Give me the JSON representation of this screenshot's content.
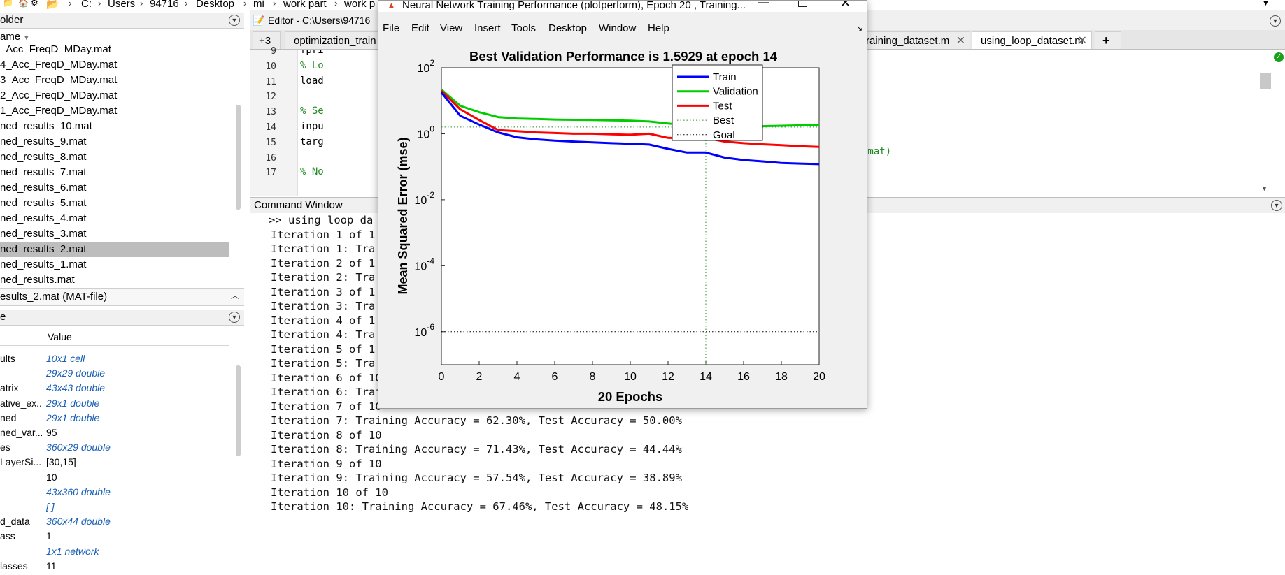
{
  "address_bar": {
    "crumbs": [
      "C:",
      "Users",
      "94716",
      "Desktop",
      "mi",
      "work part",
      "work p"
    ]
  },
  "current_folder": {
    "title": "older",
    "column_header": "ame",
    "files": [
      "_Acc_FreqD_MDay.mat",
      "4_Acc_FreqD_MDay.mat",
      "3_Acc_FreqD_MDay.mat",
      "2_Acc_FreqD_MDay.mat",
      "1_Acc_FreqD_MDay.mat",
      "ned_results_10.mat",
      "ned_results_9.mat",
      "ned_results_8.mat",
      "ned_results_7.mat",
      "ned_results_6.mat",
      "ned_results_5.mat",
      "ned_results_4.mat",
      "ned_results_3.mat",
      "ned_results_2.mat",
      "ned_results_1.mat",
      "ned_results.mat"
    ],
    "selected_index": 13
  },
  "details": {
    "label": "esults_2.mat  (MAT-file)"
  },
  "workspace": {
    "title": "e",
    "col_name": "",
    "col_value": "Value",
    "rows": [
      {
        "name": "ults",
        "value": "10x1 cell",
        "link": true
      },
      {
        "name": "",
        "value": "29x29 double",
        "link": true
      },
      {
        "name": "atrix",
        "value": "43x43 double",
        "link": true
      },
      {
        "name": "ative_ex...",
        "value": "29x1 double",
        "link": true
      },
      {
        "name": "ned",
        "value": "29x1 double",
        "link": true
      },
      {
        "name": "ned_var...",
        "value": "95",
        "link": false
      },
      {
        "name": "es",
        "value": "360x29 double",
        "link": true
      },
      {
        "name": "LayerSi...",
        "value": "[30,15]",
        "link": false
      },
      {
        "name": "",
        "value": "10",
        "link": false
      },
      {
        "name": "",
        "value": "43x360 double",
        "link": true
      },
      {
        "name": "",
        "value": "[ ]",
        "link": true
      },
      {
        "name": "d_data",
        "value": "360x44 double",
        "link": true
      },
      {
        "name": "ass",
        "value": "1",
        "link": false
      },
      {
        "name": "",
        "value": "1x1 network",
        "link": true
      },
      {
        "name": "lasses",
        "value": "11",
        "link": false
      }
    ]
  },
  "editor": {
    "title": "Editor - C:\\Users\\94716",
    "tabs": [
      {
        "label": "+3"
      },
      {
        "label": "optimization_train"
      },
      {
        "label": "raining_dataset.m"
      },
      {
        "label": "using_loop_dataset.m"
      }
    ],
    "add_tab": "+",
    "lines": [
      {
        "n": "9",
        "code": "fpri",
        "comment": false
      },
      {
        "n": "10",
        "code": "% Lo",
        "comment": true
      },
      {
        "n": "11",
        "code": "load",
        "comment": false
      },
      {
        "n": "12",
        "code": "",
        "comment": false
      },
      {
        "n": "13",
        "code": "% Se",
        "comment": true
      },
      {
        "n": "14",
        "code": "inpu",
        "comment": false
      },
      {
        "n": "15",
        "code": "targ",
        "comment": false
      },
      {
        "n": "16",
        "code": "",
        "comment": false
      },
      {
        "n": "17",
        "code": "% No",
        "comment": true
      }
    ],
    "right_fragment": "rmat)"
  },
  "command_window": {
    "title": "Command Window",
    "lines": [
      ">> using_loop_da",
      "Iteration 1 of 1",
      "Iteration 1: Tra",
      "Iteration 2 of 1",
      "Iteration 2: Tra",
      "Iteration 3 of 1",
      "Iteration 3: Tra",
      "Iteration 4 of 1",
      "Iteration 4: Tra",
      "Iteration 5 of 1",
      "Iteration 5: Tra",
      "Iteration 6 of 10",
      "Iteration 6: Training Accuracy = 84.52%, Test Accuracy = 72.22%",
      "Iteration 7 of 10",
      "Iteration 7: Training Accuracy = 62.30%, Test Accuracy = 50.00%",
      "Iteration 8 of 10",
      "Iteration 8: Training Accuracy = 71.43%, Test Accuracy = 44.44%",
      "Iteration 9 of 10",
      "Iteration 9: Training Accuracy = 57.54%, Test Accuracy = 38.89%",
      "Iteration 10 of 10",
      "Iteration 10: Training Accuracy = 67.46%, Test Accuracy = 48.15%"
    ]
  },
  "figure": {
    "title": "Neural Network Training Performance (plotperform), Epoch 20 , Training...",
    "menu": [
      "File",
      "Edit",
      "View",
      "Insert",
      "Tools",
      "Desktop",
      "Window",
      "Help"
    ]
  },
  "colors": {
    "train": "#0000ff",
    "validation": "#00cc00",
    "test": "#ff0000",
    "best_marker": "#008800",
    "link": "#1a5fb4",
    "comment": "#228b22"
  },
  "chart_data": {
    "type": "line",
    "title": "Best Validation Performance is 1.5929 at epoch 14",
    "xlabel": "20 Epochs",
    "ylabel": "Mean Squared Error  (mse)",
    "xlim": [
      0,
      20
    ],
    "ylim": [
      1e-07,
      100
    ],
    "yscale": "log",
    "xticks": [
      "0",
      "2",
      "4",
      "6",
      "8",
      "10",
      "12",
      "14",
      "16",
      "18",
      "20"
    ],
    "yticks": [
      {
        "base": "10",
        "exp": "2",
        "value": 100
      },
      {
        "base": "10",
        "exp": "0",
        "value": 1
      },
      {
        "base": "10",
        "exp": "-2",
        "value": 0.01
      },
      {
        "base": "10",
        "exp": "-4",
        "value": 0.0001
      },
      {
        "base": "10",
        "exp": "-6",
        "value": 1e-06
      }
    ],
    "x": [
      0,
      1,
      2,
      3,
      4,
      5,
      6,
      7,
      8,
      9,
      10,
      11,
      12,
      13,
      14,
      15,
      16,
      17,
      18,
      19,
      20
    ],
    "series": [
      {
        "name": "Train",
        "values": [
          18,
          3.5,
          1.9,
          1.1,
          0.78,
          0.68,
          0.62,
          0.58,
          0.55,
          0.52,
          0.5,
          0.47,
          0.35,
          0.27,
          0.27,
          0.19,
          0.16,
          0.145,
          0.13,
          0.125,
          0.12
        ]
      },
      {
        "name": "Validation",
        "values": [
          22,
          7,
          4.5,
          3.2,
          2.9,
          2.8,
          2.7,
          2.65,
          2.6,
          2.55,
          2.5,
          2.35,
          2.05,
          1.8,
          1.5929,
          1.6,
          1.65,
          1.7,
          1.75,
          1.8,
          1.85
        ]
      },
      {
        "name": "Test",
        "values": [
          20,
          5.5,
          2.6,
          1.3,
          1.2,
          1.1,
          1.05,
          1.0,
          1.0,
          0.96,
          0.93,
          1.0,
          0.75,
          0.72,
          0.74,
          0.58,
          0.52,
          0.48,
          0.45,
          0.42,
          0.4
        ]
      }
    ],
    "best": {
      "name": "Best",
      "epoch": 14,
      "value": 1.5929
    },
    "goal": {
      "name": "Goal",
      "value": 1e-06
    },
    "legend": [
      "Train",
      "Validation",
      "Test",
      "Best",
      "Goal"
    ],
    "legend_position": "top-right",
    "grid": false
  }
}
